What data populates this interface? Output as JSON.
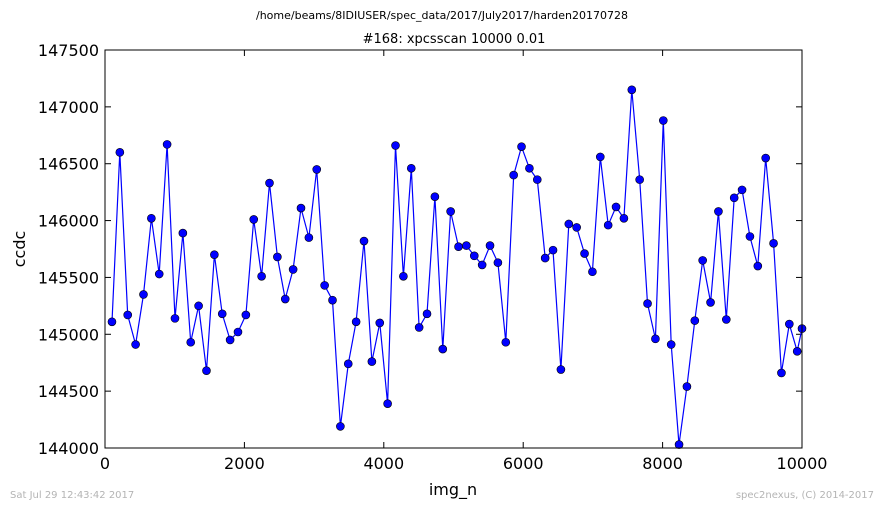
{
  "suptitle": "/home/beams/8IDIUSER/spec_data/2017/July2017/harden20170728",
  "footer_left": "Sat Jul 29 12:43:42 2017",
  "footer_right": "spec2nexus, (C) 2014-2017",
  "chart_data": {
    "type": "line",
    "title": "#168: xpcsscan 10000 0.01",
    "xlabel": "img_n",
    "ylabel": "ccdc",
    "xlim": [
      0,
      10000
    ],
    "ylim": [
      144000,
      147500
    ],
    "xticks": [
      0,
      2000,
      4000,
      6000,
      8000,
      10000
    ],
    "yticks": [
      144000,
      144500,
      145000,
      145500,
      146000,
      146500,
      147000,
      147500
    ],
    "grid": false,
    "series_color": "#0000ff",
    "marker": "circle",
    "x": [
      100,
      213,
      326,
      439,
      552,
      665,
      778,
      891,
      1004,
      1117,
      1230,
      1343,
      1456,
      1569,
      1682,
      1795,
      1908,
      2021,
      2134,
      2247,
      2360,
      2473,
      2586,
      2699,
      2812,
      2925,
      3038,
      3151,
      3264,
      3377,
      3490,
      3603,
      3716,
      3829,
      3942,
      4055,
      4168,
      4281,
      4394,
      4507,
      4620,
      4733,
      4846,
      4959,
      5072,
      5185,
      5298,
      5411,
      5524,
      5637,
      5750,
      5863,
      5976,
      6089,
      6202,
      6315,
      6428,
      6541,
      6654,
      6767,
      6880,
      6993,
      7106,
      7219,
      7332,
      7445,
      7558,
      7671,
      7784,
      7897,
      8010,
      8123,
      8236,
      8349,
      8462,
      8575,
      8688,
      8801,
      8914,
      9027,
      9140,
      9253,
      9366,
      9479,
      9592,
      9705,
      9818,
      9931,
      10000
    ],
    "y": [
      145110,
      146600,
      145170,
      144910,
      145350,
      146020,
      145530,
      146670,
      145140,
      145890,
      144930,
      145250,
      144680,
      145700,
      145180,
      144950,
      145020,
      145170,
      146010,
      145510,
      146330,
      145680,
      145310,
      145570,
      146110,
      145850,
      146450,
      145430,
      145300,
      144190,
      144740,
      145110,
      145820,
      144760,
      145100,
      144390,
      146660,
      145510,
      146460,
      145060,
      145180,
      146210,
      144870,
      146080,
      145770,
      145780,
      145690,
      145610,
      145780,
      145630,
      144930,
      146400,
      146650,
      146460,
      146360,
      145670,
      145740,
      144690,
      145970,
      145940,
      145710,
      145550,
      146560,
      145960,
      146120,
      146020,
      147150,
      146360,
      145270,
      144960,
      146880,
      144910,
      144030,
      144540,
      145120,
      145650,
      145280,
      146080,
      145130,
      146200,
      146270,
      145860,
      145600,
      146550,
      145800,
      144660,
      145090,
      144850,
      145050
    ]
  }
}
